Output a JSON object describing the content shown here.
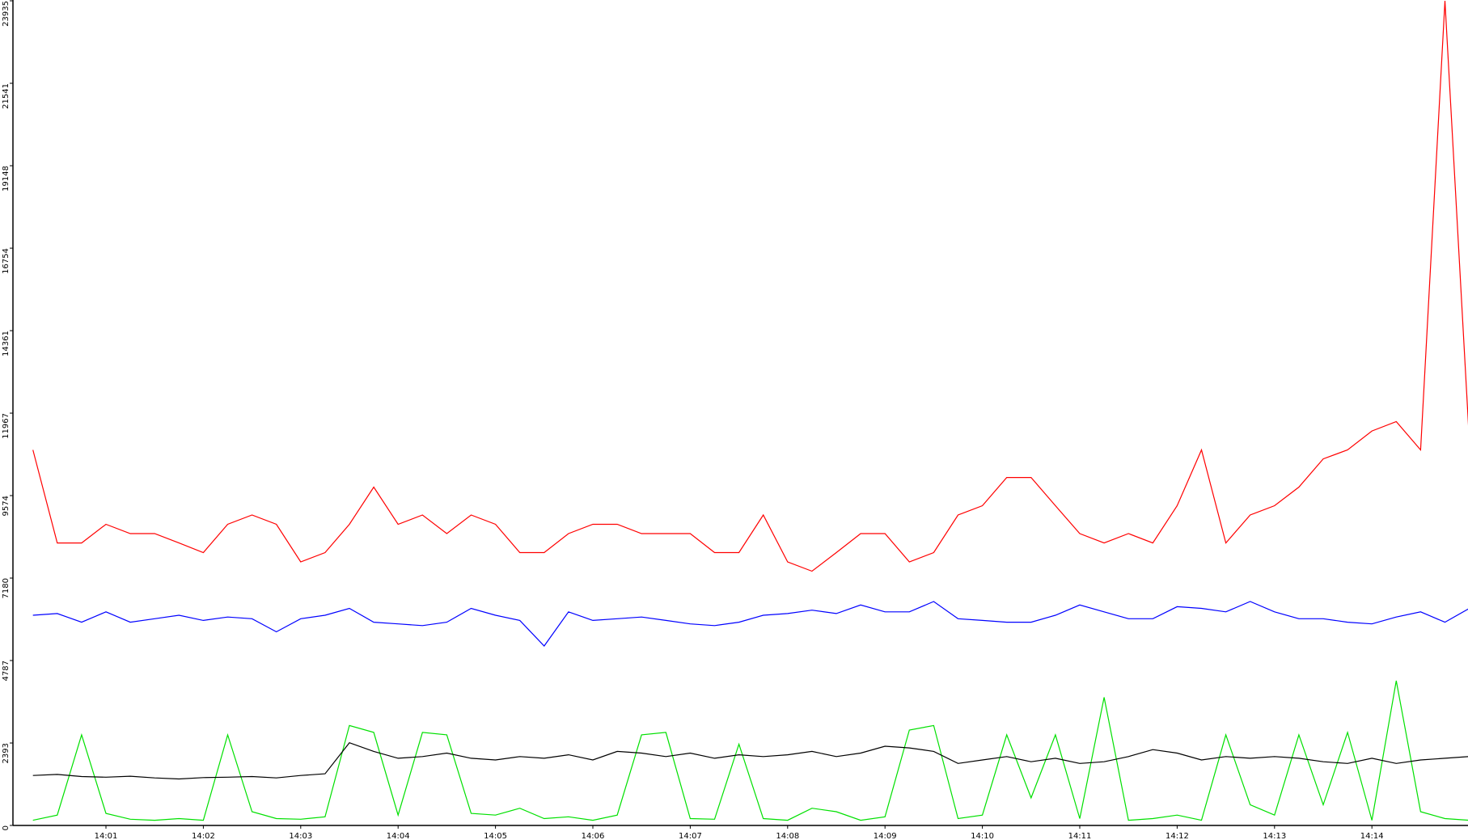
{
  "chart_data": {
    "type": "line",
    "categories": [
      null,
      null,
      null,
      "14:01",
      null,
      null,
      null,
      "14:02",
      null,
      null,
      null,
      "14:03",
      null,
      null,
      null,
      "14:04",
      null,
      null,
      null,
      "14:05",
      null,
      null,
      null,
      "14:06",
      null,
      null,
      null,
      "14:07",
      null,
      null,
      null,
      "14:08",
      null,
      null,
      null,
      "14:09",
      null,
      null,
      null,
      "14:10",
      null,
      null,
      null,
      "14:11",
      null,
      null,
      null,
      "14:12",
      null,
      null,
      null,
      "14:13",
      null,
      null,
      null,
      "14:14",
      null,
      null,
      null,
      null
    ],
    "series": [
      {
        "color": "#00e000",
        "values": [
          150,
          300,
          2630,
          350,
          180,
          150,
          200,
          150,
          2630,
          400,
          200,
          180,
          250,
          2900,
          2700,
          300,
          2700,
          2630,
          350,
          300,
          500,
          200,
          250,
          150,
          300,
          2630,
          2700,
          200,
          180,
          2360,
          200,
          150,
          500,
          400,
          150,
          250,
          2770,
          2900,
          200,
          300,
          2630,
          800,
          2630,
          200,
          3720,
          150,
          200,
          300,
          150,
          2630,
          600,
          300,
          2630,
          600,
          2700,
          150,
          4200,
          400,
          200,
          150
        ]
      },
      {
        "color": "#000000",
        "values": [
          1450,
          1480,
          1420,
          1400,
          1430,
          1380,
          1350,
          1390,
          1400,
          1420,
          1380,
          1450,
          1500,
          2400,
          2150,
          1950,
          2000,
          2100,
          1950,
          1900,
          2000,
          1950,
          2050,
          1900,
          2150,
          2100,
          2000,
          2100,
          1950,
          2050,
          2000,
          2050,
          2150,
          2000,
          2100,
          2300,
          2250,
          2150,
          1800,
          1900,
          2000,
          1850,
          1950,
          1800,
          1850,
          2000,
          2200,
          2100,
          1900,
          2000,
          1950,
          2000,
          1950,
          1850,
          1800,
          1950,
          1800,
          1900,
          1950,
          2000
        ]
      },
      {
        "color": "#0000ff",
        "values": [
          6100,
          6150,
          5900,
          6200,
          5900,
          6000,
          6100,
          5950,
          6050,
          6000,
          5620,
          6000,
          6100,
          6300,
          5900,
          5850,
          5800,
          5900,
          6300,
          6100,
          5950,
          5210,
          6200,
          5950,
          6000,
          6050,
          5950,
          5850,
          5800,
          5900,
          6100,
          6150,
          6250,
          6150,
          6400,
          6200,
          6200,
          6500,
          6000,
          5950,
          5900,
          5900,
          6100,
          6400,
          6200,
          6000,
          6000,
          6350,
          6300,
          6200,
          6500,
          6200,
          6000,
          6000,
          5900,
          5850,
          6050,
          6200,
          5900,
          6300
        ]
      },
      {
        "color": "#ff0000",
        "values": [
          10900,
          8200,
          8200,
          8740,
          8470,
          8470,
          8200,
          7920,
          8740,
          9010,
          8740,
          7650,
          7920,
          8740,
          9820,
          8740,
          9010,
          8470,
          9010,
          8740,
          7920,
          7920,
          8470,
          8740,
          8740,
          8470,
          8470,
          8470,
          7920,
          7920,
          9010,
          7650,
          7380,
          7920,
          8470,
          8470,
          7650,
          7920,
          9010,
          9280,
          10100,
          10100,
          9280,
          8470,
          8200,
          8470,
          8200,
          9280,
          10900,
          8200,
          9010,
          9280,
          9820,
          10640,
          10900,
          11450,
          11720,
          10900,
          23935,
          11180
        ]
      }
    ],
    "ylim": [
      0,
      23935
    ],
    "yticks": [
      0,
      2393,
      4787,
      7180,
      9574,
      11967,
      14361,
      16754,
      19148,
      21541,
      23935
    ],
    "grid": false
  }
}
